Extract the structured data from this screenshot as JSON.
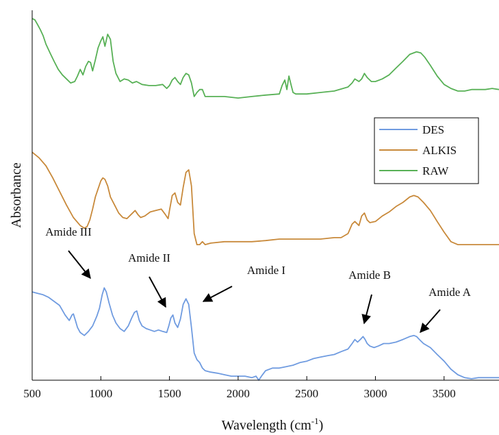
{
  "chart_data": {
    "type": "line",
    "title": "",
    "xlabel": "Wavelength (cm",
    "xlabel_sup": "-1",
    "xlabel_close": ")",
    "ylabel": "Absorbance",
    "xlim": [
      500,
      3900
    ],
    "ylim": [
      0,
      1
    ],
    "x_ticks": [
      500,
      1000,
      1500,
      2000,
      2500,
      3000,
      3500
    ],
    "grid": false,
    "legend_position": "top-right",
    "colors": {
      "DES": "#6f9be0",
      "ALKIS": "#c8893a",
      "RAW": "#57b055"
    },
    "series": [
      {
        "name": "DES",
        "x": [
          500,
          540,
          580,
          620,
          660,
          700,
          740,
          770,
          790,
          800,
          815,
          830,
          850,
          880,
          910,
          940,
          970,
          990,
          1010,
          1025,
          1040,
          1060,
          1085,
          1110,
          1140,
          1170,
          1200,
          1225,
          1245,
          1262,
          1280,
          1300,
          1330,
          1360,
          1390,
          1420,
          1450,
          1480,
          1495,
          1510,
          1525,
          1540,
          1560,
          1580,
          1600,
          1620,
          1640,
          1660,
          1680,
          1700,
          1720,
          1740,
          1760,
          1800,
          1850,
          1900,
          1950,
          2000,
          2050,
          2100,
          2130,
          2150,
          2170,
          2200,
          2250,
          2300,
          2350,
          2400,
          2450,
          2500,
          2550,
          2600,
          2650,
          2700,
          2750,
          2800,
          2830,
          2850,
          2870,
          2890,
          2910,
          2925,
          2940,
          2960,
          2990,
          3020,
          3060,
          3100,
          3150,
          3200,
          3250,
          3280,
          3300,
          3320,
          3350,
          3400,
          3450,
          3500,
          3550,
          3600,
          3650,
          3700,
          3750,
          3800,
          3850,
          3900
        ],
        "y": [
          0.241,
          0.237,
          0.233,
          0.226,
          0.215,
          0.204,
          0.178,
          0.163,
          0.178,
          0.181,
          0.163,
          0.144,
          0.13,
          0.122,
          0.133,
          0.148,
          0.174,
          0.196,
          0.233,
          0.252,
          0.241,
          0.211,
          0.178,
          0.156,
          0.141,
          0.133,
          0.148,
          0.17,
          0.185,
          0.189,
          0.163,
          0.148,
          0.141,
          0.137,
          0.133,
          0.137,
          0.133,
          0.13,
          0.148,
          0.17,
          0.178,
          0.156,
          0.144,
          0.167,
          0.207,
          0.222,
          0.207,
          0.144,
          0.074,
          0.056,
          0.048,
          0.033,
          0.026,
          0.022,
          0.019,
          0.015,
          0.011,
          0.011,
          0.011,
          0.007,
          0.011,
          0.0,
          0.011,
          0.026,
          0.033,
          0.033,
          0.037,
          0.041,
          0.048,
          0.052,
          0.059,
          0.063,
          0.067,
          0.07,
          0.078,
          0.085,
          0.1,
          0.111,
          0.104,
          0.111,
          0.119,
          0.111,
          0.1,
          0.093,
          0.089,
          0.093,
          0.1,
          0.1,
          0.104,
          0.111,
          0.119,
          0.122,
          0.119,
          0.111,
          0.1,
          0.089,
          0.07,
          0.052,
          0.03,
          0.015,
          0.007,
          0.004,
          0.007,
          0.007,
          0.007,
          0.007
        ]
      },
      {
        "name": "ALKIS",
        "x": [
          500,
          550,
          600,
          650,
          700,
          750,
          800,
          850,
          880,
          900,
          920,
          940,
          960,
          980,
          1000,
          1015,
          1030,
          1050,
          1070,
          1100,
          1130,
          1160,
          1190,
          1220,
          1250,
          1270,
          1290,
          1320,
          1360,
          1400,
          1440,
          1470,
          1490,
          1500,
          1520,
          1540,
          1560,
          1580,
          1600,
          1620,
          1640,
          1660,
          1680,
          1700,
          1720,
          1740,
          1760,
          1800,
          1900,
          2000,
          2100,
          2200,
          2300,
          2400,
          2500,
          2600,
          2700,
          2750,
          2800,
          2830,
          2850,
          2880,
          2900,
          2920,
          2940,
          2960,
          3000,
          3050,
          3100,
          3150,
          3200,
          3250,
          3280,
          3310,
          3350,
          3400,
          3450,
          3500,
          3550,
          3600,
          3650,
          3700,
          3750,
          3800,
          3850,
          3900
        ],
        "y": [
          0.622,
          0.607,
          0.585,
          0.552,
          0.515,
          0.478,
          0.444,
          0.422,
          0.415,
          0.419,
          0.437,
          0.467,
          0.5,
          0.522,
          0.544,
          0.552,
          0.548,
          0.53,
          0.5,
          0.478,
          0.456,
          0.444,
          0.441,
          0.452,
          0.463,
          0.452,
          0.444,
          0.448,
          0.459,
          0.463,
          0.467,
          0.452,
          0.441,
          0.463,
          0.504,
          0.511,
          0.485,
          0.478,
          0.526,
          0.567,
          0.574,
          0.53,
          0.4,
          0.37,
          0.37,
          0.378,
          0.37,
          0.374,
          0.378,
          0.378,
          0.378,
          0.381,
          0.385,
          0.385,
          0.385,
          0.385,
          0.389,
          0.389,
          0.4,
          0.426,
          0.433,
          0.422,
          0.448,
          0.456,
          0.437,
          0.43,
          0.433,
          0.448,
          0.459,
          0.474,
          0.485,
          0.5,
          0.504,
          0.5,
          0.485,
          0.463,
          0.433,
          0.404,
          0.378,
          0.37,
          0.37,
          0.37,
          0.37,
          0.37,
          0.37,
          0.37
        ]
      },
      {
        "name": "RAW",
        "x": [
          500,
          520,
          540,
          560,
          580,
          600,
          630,
          660,
          690,
          720,
          750,
          780,
          810,
          830,
          850,
          870,
          890,
          910,
          925,
          940,
          960,
          980,
          1000,
          1015,
          1030,
          1050,
          1070,
          1090,
          1110,
          1140,
          1170,
          1200,
          1230,
          1260,
          1300,
          1350,
          1400,
          1450,
          1480,
          1500,
          1520,
          1540,
          1560,
          1580,
          1600,
          1620,
          1640,
          1660,
          1680,
          1700,
          1720,
          1740,
          1760,
          1800,
          1900,
          2000,
          2100,
          2200,
          2300,
          2320,
          2340,
          2355,
          2370,
          2385,
          2400,
          2420,
          2500,
          2600,
          2700,
          2800,
          2830,
          2850,
          2880,
          2900,
          2920,
          2940,
          2970,
          3000,
          3050,
          3100,
          3150,
          3200,
          3250,
          3300,
          3330,
          3360,
          3400,
          3450,
          3500,
          3550,
          3600,
          3650,
          3700,
          3750,
          3800,
          3850,
          3900
        ],
        "y": [
          0.987,
          0.983,
          0.97,
          0.956,
          0.94,
          0.917,
          0.893,
          0.87,
          0.848,
          0.833,
          0.822,
          0.811,
          0.815,
          0.83,
          0.848,
          0.833,
          0.856,
          0.87,
          0.867,
          0.844,
          0.874,
          0.907,
          0.926,
          0.937,
          0.911,
          0.944,
          0.93,
          0.87,
          0.837,
          0.815,
          0.822,
          0.819,
          0.811,
          0.815,
          0.807,
          0.804,
          0.804,
          0.807,
          0.796,
          0.804,
          0.819,
          0.826,
          0.815,
          0.807,
          0.826,
          0.837,
          0.833,
          0.811,
          0.774,
          0.785,
          0.793,
          0.793,
          0.774,
          0.774,
          0.774,
          0.77,
          0.774,
          0.778,
          0.781,
          0.804,
          0.819,
          0.793,
          0.83,
          0.807,
          0.785,
          0.781,
          0.781,
          0.785,
          0.789,
          0.8,
          0.811,
          0.822,
          0.815,
          0.822,
          0.837,
          0.826,
          0.815,
          0.815,
          0.822,
          0.833,
          0.852,
          0.87,
          0.889,
          0.896,
          0.893,
          0.881,
          0.859,
          0.83,
          0.807,
          0.796,
          0.789,
          0.789,
          0.793,
          0.793,
          0.793,
          0.796,
          0.793
        ]
      }
    ],
    "annotations": [
      {
        "text": "Amide III",
        "x": 965,
        "y": 0.259
      },
      {
        "text": "Amide II",
        "x": 1500,
        "y": 0.181
      },
      {
        "text": "Amide I",
        "x": 1725,
        "y": 0.204
      },
      {
        "text": "Amide B",
        "x": 2925,
        "y": 0.144
      },
      {
        "text": "Amide A",
        "x": 3340,
        "y": 0.126
      }
    ]
  }
}
